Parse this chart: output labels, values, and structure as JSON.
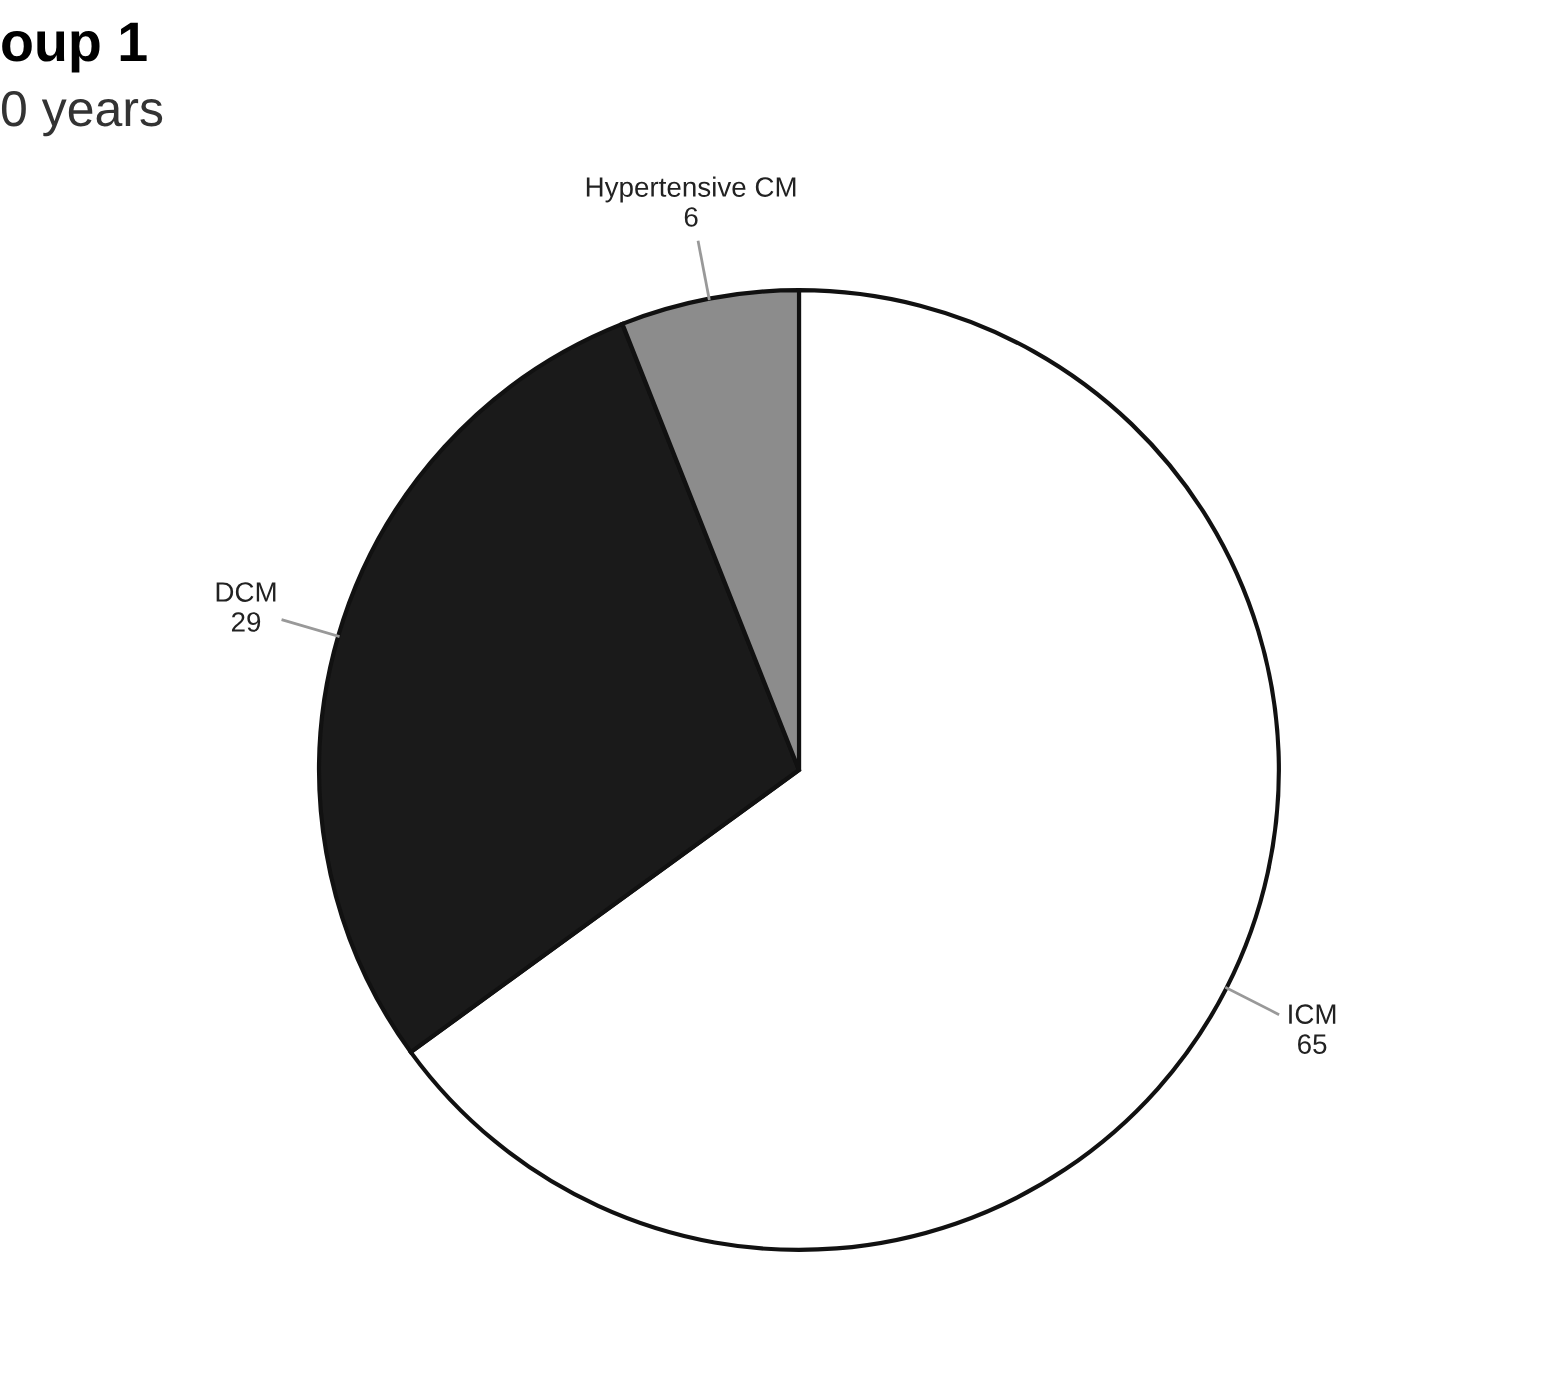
{
  "chart_data": {
    "type": "pie",
    "title": "oup 1",
    "subtitle": "0 years",
    "categories": [
      "ICM",
      "DCM",
      "Hypertensive CM"
    ],
    "values": [
      65,
      29,
      6
    ],
    "colors": [
      "#ffffff",
      "#1a1a1a",
      "#8c8c8c"
    ],
    "data_labels": true,
    "legend": false
  }
}
